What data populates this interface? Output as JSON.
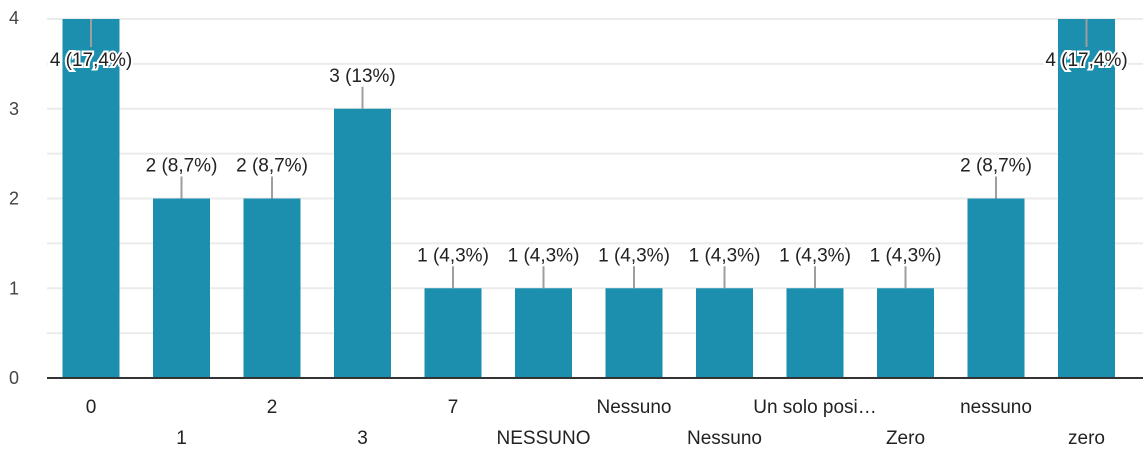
{
  "chart_data": {
    "type": "bar",
    "categories": [
      "0",
      "1",
      "2",
      "3",
      "7",
      "NESSUNO",
      "Nessuno",
      "Nessuno",
      "Un solo posi…",
      "Zero",
      "nessuno",
      "zero"
    ],
    "values": [
      4,
      2,
      2,
      3,
      1,
      1,
      1,
      1,
      1,
      1,
      2,
      4
    ],
    "data_labels": [
      "4 (17,4%)",
      "2 (8,7%)",
      "2 (8,7%)",
      "3 (13%)",
      "1 (4,3%)",
      "1 (4,3%)",
      "1 (4,3%)",
      "1 (4,3%)",
      "1 (4,3%)",
      "1 (4,3%)",
      "2 (8,7%)",
      "4 (17,4%)"
    ],
    "y_ticks": [
      "0",
      "1",
      "2",
      "3",
      "4"
    ],
    "ylim": [
      0,
      4
    ],
    "grid": true,
    "bar_color": "#1b8fad"
  }
}
